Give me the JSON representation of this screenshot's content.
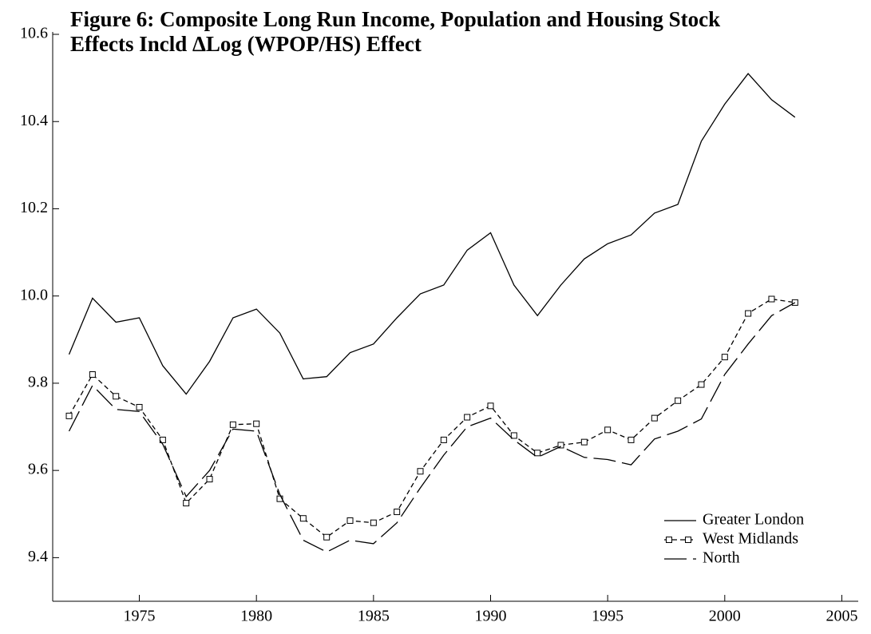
{
  "chart_data": {
    "type": "line",
    "title": [
      "Figure 6: Composite Long Run Income, Population and Housing Stock",
      "Effects Incld ΔLog (WPOP/HS) Effect"
    ],
    "x": [
      1972,
      1973,
      1974,
      1975,
      1976,
      1977,
      1978,
      1979,
      1980,
      1981,
      1982,
      1983,
      1984,
      1985,
      1986,
      1987,
      1988,
      1989,
      1990,
      1991,
      1992,
      1993,
      1994,
      1995,
      1996,
      1997,
      1998,
      1999,
      2000,
      2001,
      2002,
      2003
    ],
    "series": [
      {
        "name": "Greater London",
        "color": "#000000",
        "dash": "solid",
        "marker": "none",
        "values": [
          9.866,
          9.995,
          9.94,
          9.95,
          9.84,
          9.775,
          9.85,
          9.95,
          9.97,
          9.915,
          9.81,
          9.815,
          9.87,
          9.89,
          9.95,
          10.005,
          10.025,
          10.105,
          10.145,
          10.025,
          9.955,
          10.025,
          10.085,
          10.12,
          10.14,
          10.19,
          10.21,
          10.355,
          10.44,
          10.51,
          10.45,
          10.41
        ]
      },
      {
        "name": "West Midlands",
        "color": "#000000",
        "dash": "dash",
        "marker": "square",
        "values": [
          9.725,
          9.82,
          9.77,
          9.745,
          9.67,
          9.525,
          9.58,
          9.705,
          9.707,
          9.535,
          9.49,
          9.447,
          9.485,
          9.48,
          9.505,
          9.598,
          9.67,
          9.722,
          9.748,
          9.68,
          9.64,
          9.658,
          9.665,
          9.693,
          9.67,
          9.72,
          9.76,
          9.797,
          9.86,
          9.96,
          9.993,
          9.985
        ]
      },
      {
        "name": "North",
        "color": "#000000",
        "dash": "longdash",
        "marker": "none",
        "values": [
          9.69,
          9.795,
          9.74,
          9.735,
          9.66,
          9.54,
          9.6,
          9.695,
          9.69,
          9.545,
          9.44,
          9.413,
          9.44,
          9.432,
          9.48,
          9.56,
          9.635,
          9.7,
          9.72,
          9.67,
          9.63,
          9.655,
          9.63,
          9.625,
          9.613,
          9.672,
          9.69,
          9.718,
          9.82,
          9.89,
          9.955,
          9.985
        ]
      }
    ],
    "xlim": [
      1971.3,
      2005.7
    ],
    "xticks": [
      1975,
      1980,
      1985,
      1990,
      1995,
      2000,
      2005
    ],
    "ylim": [
      9.3,
      10.6
    ],
    "yticks": [
      {
        "value": 9.4,
        "label": "9.4"
      },
      {
        "value": 9.6,
        "label": "9.6"
      },
      {
        "value": 9.8,
        "label": "9.8"
      },
      {
        "value": 10.0,
        "label": "10.0"
      },
      {
        "value": 10.2,
        "label": "10.2"
      },
      {
        "value": 10.4,
        "label": "10.4"
      },
      {
        "value": 10.6,
        "label": "10.6"
      }
    ],
    "legend": "bottom-right"
  }
}
